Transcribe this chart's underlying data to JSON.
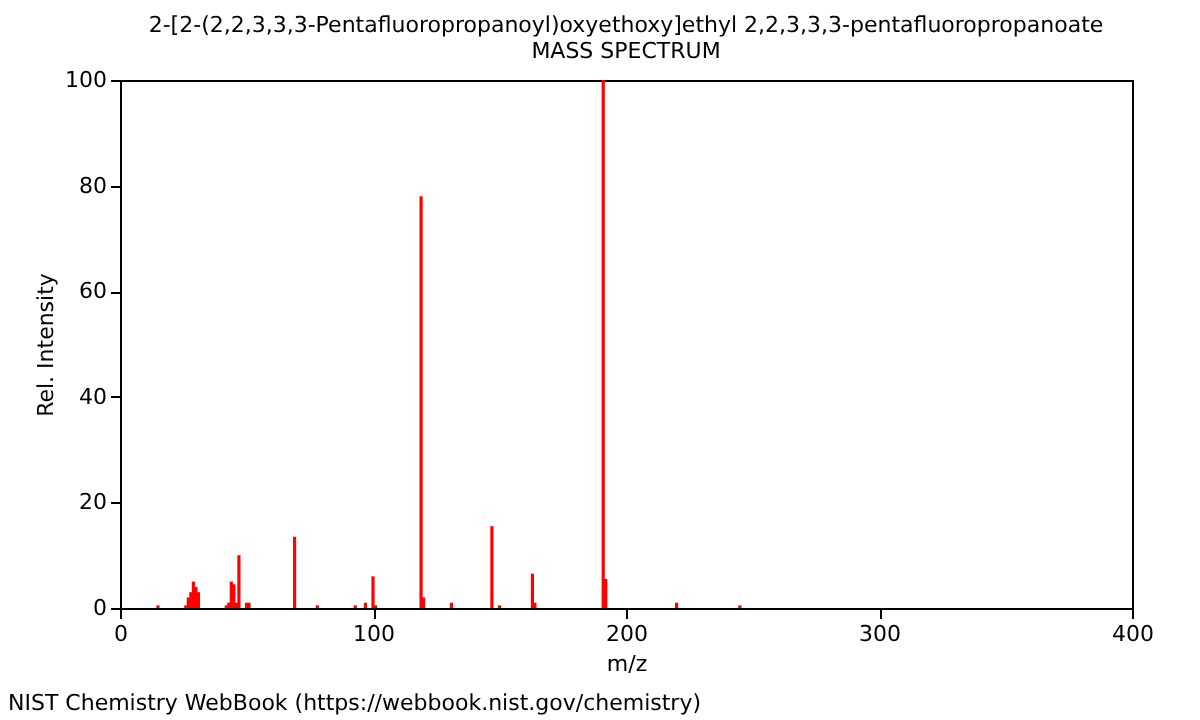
{
  "chart_data": {
    "type": "bar",
    "title": "2-[2-(2,2,3,3,3-Pentafluoropropanoyl)oxyethoxy]ethyl 2,2,3,3,3-pentafluoropropanoate",
    "subtitle": "MASS SPECTRUM",
    "xlabel": "m/z",
    "ylabel": "Rel. Intensity",
    "x": [
      15,
      26,
      27,
      28,
      29,
      30,
      31,
      42,
      43,
      44,
      45,
      46,
      47,
      50,
      51,
      69,
      78,
      93,
      97,
      100,
      101,
      119,
      120,
      131,
      147,
      150,
      163,
      164,
      191,
      192,
      220,
      245
    ],
    "series": [
      {
        "color": "#ff0000",
        "values": [
          0.5,
          0.5,
          2,
          3,
          5,
          4,
          3,
          0.5,
          1,
          5,
          4.5,
          1,
          10,
          1,
          1,
          13.5,
          0.5,
          0.5,
          1,
          6,
          0.5,
          78,
          2,
          1,
          15.5,
          0.5,
          6.5,
          1,
          100,
          5.5,
          1,
          0.5
        ]
      }
    ],
    "xlim": [
      0,
      400
    ],
    "xticks": [
      0,
      100,
      200,
      300,
      400
    ],
    "ylim": [
      0,
      100
    ],
    "yticks": [
      0,
      20,
      40,
      60,
      80,
      100
    ],
    "grid": false,
    "annotations": [
      "NIST Chemistry WebBook (https://webbook.nist.gov/chemistry)"
    ]
  }
}
